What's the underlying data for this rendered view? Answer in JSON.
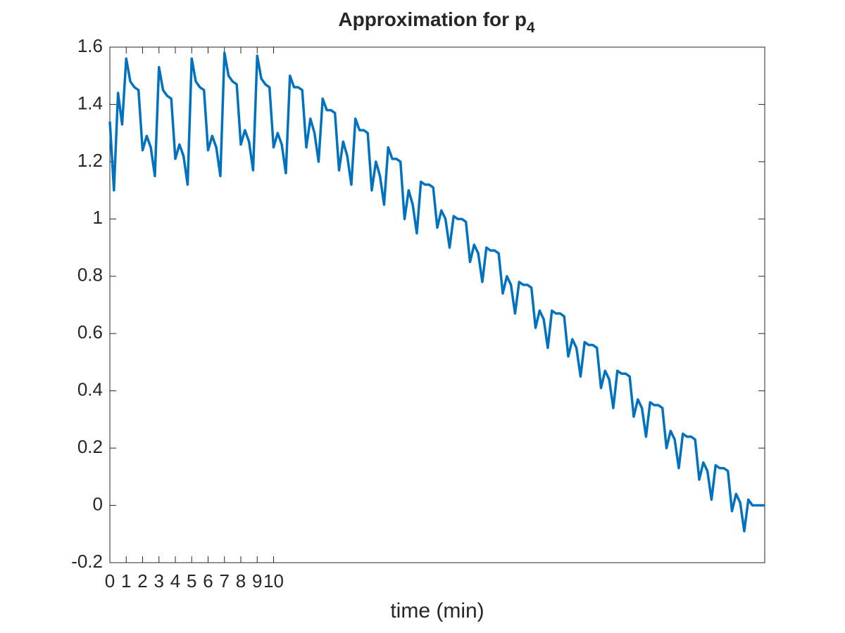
{
  "chart_data": {
    "type": "line",
    "title": "Approximation for p",
    "title_subscript": "4",
    "xlabel": "time (min)",
    "xlim": [
      0,
      40
    ],
    "xticks": [
      0,
      1,
      2,
      3,
      4,
      5,
      6,
      7,
      8,
      9,
      10
    ],
    "ylim": [
      -0.2,
      1.6
    ],
    "yticks": [
      -0.2,
      0,
      0.2,
      0.4,
      0.6,
      0.8,
      1,
      1.2,
      1.4,
      1.6
    ],
    "grid": false,
    "box": true,
    "x": [
      0,
      0.25,
      0.5,
      0.75,
      1,
      1.25,
      1.5,
      1.75,
      2,
      2.25,
      2.5,
      2.75,
      3,
      3.25,
      3.5,
      3.75,
      4,
      4.25,
      4.5,
      4.75,
      5,
      5.25,
      5.5,
      5.75,
      6,
      6.25,
      6.5,
      6.75,
      7,
      7.25,
      7.5,
      7.75,
      8,
      8.25,
      8.5,
      8.75,
      9,
      9.25,
      9.5,
      9.75,
      10,
      10.25,
      10.5,
      10.75,
      11,
      11.25,
      11.5,
      11.75,
      12,
      12.25,
      12.5,
      12.75,
      13,
      13.25,
      13.5,
      13.75,
      14,
      14.25,
      14.5,
      14.75,
      15,
      15.25,
      15.5,
      15.75,
      16,
      16.25,
      16.5,
      16.75,
      17,
      17.25,
      17.5,
      17.75,
      18,
      18.25,
      18.5,
      18.75,
      19,
      19.25,
      19.5,
      19.75,
      20,
      20.25,
      20.5,
      20.75,
      21,
      21.25,
      21.5,
      21.75,
      22,
      22.25,
      22.5,
      22.75,
      23,
      23.25,
      23.5,
      23.75,
      24,
      24.25,
      24.5,
      24.75,
      25,
      25.25,
      25.5,
      25.75,
      26,
      26.25,
      26.5,
      26.75,
      27,
      27.25,
      27.5,
      27.75,
      28,
      28.25,
      28.5,
      28.75,
      29,
      29.25,
      29.5,
      29.75,
      30,
      30.25,
      30.5,
      30.75,
      31,
      31.25,
      31.5,
      31.75,
      32,
      32.25,
      32.5,
      32.75,
      33,
      33.25,
      33.5,
      33.75,
      34,
      34.25,
      34.5,
      34.75,
      35,
      35.25,
      35.5,
      35.75,
      36,
      36.25,
      36.5,
      36.75,
      37,
      37.25,
      37.5,
      37.75,
      38,
      38.25,
      38.5,
      38.75,
      39,
      39.25,
      39.5,
      39.75,
      40
    ],
    "series": [
      {
        "color": "#0072bd",
        "values": [
          1.34,
          1.1,
          1.44,
          1.33,
          1.56,
          1.48,
          1.46,
          1.45,
          1.24,
          1.29,
          1.25,
          1.15,
          1.53,
          1.45,
          1.43,
          1.42,
          1.21,
          1.26,
          1.22,
          1.12,
          1.56,
          1.48,
          1.46,
          1.45,
          1.24,
          1.29,
          1.25,
          1.15,
          1.58,
          1.5,
          1.48,
          1.47,
          1.26,
          1.31,
          1.27,
          1.17,
          1.57,
          1.49,
          1.47,
          1.46,
          1.25,
          1.3,
          1.26,
          1.16,
          1.5,
          1.46,
          1.46,
          1.45,
          1.25,
          1.35,
          1.3,
          1.2,
          1.42,
          1.38,
          1.38,
          1.37,
          1.17,
          1.27,
          1.22,
          1.12,
          1.35,
          1.31,
          1.31,
          1.3,
          1.1,
          1.2,
          1.15,
          1.05,
          1.25,
          1.21,
          1.21,
          1.2,
          1.0,
          1.1,
          1.05,
          0.95,
          1.13,
          1.12,
          1.12,
          1.11,
          0.97,
          1.03,
          1.0,
          0.9,
          1.01,
          1.0,
          1.0,
          0.99,
          0.85,
          0.91,
          0.88,
          0.78,
          0.9,
          0.89,
          0.89,
          0.88,
          0.74,
          0.8,
          0.77,
          0.67,
          0.78,
          0.77,
          0.77,
          0.76,
          0.62,
          0.68,
          0.65,
          0.55,
          0.68,
          0.67,
          0.67,
          0.66,
          0.52,
          0.58,
          0.55,
          0.45,
          0.57,
          0.56,
          0.56,
          0.55,
          0.41,
          0.47,
          0.44,
          0.34,
          0.47,
          0.46,
          0.46,
          0.45,
          0.31,
          0.37,
          0.34,
          0.24,
          0.36,
          0.35,
          0.35,
          0.34,
          0.2,
          0.26,
          0.23,
          0.13,
          0.25,
          0.24,
          0.24,
          0.23,
          0.09,
          0.15,
          0.12,
          0.02,
          0.14,
          0.13,
          0.13,
          0.12,
          -0.02,
          0.04,
          0.01,
          -0.09,
          0.02,
          0.0,
          0.0,
          0.0,
          0.0
        ]
      }
    ]
  }
}
